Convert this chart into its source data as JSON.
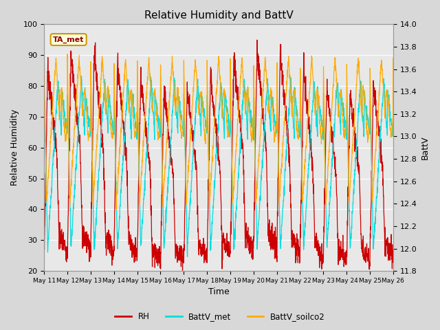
{
  "title": "Relative Humidity and BattV",
  "xlabel": "Time",
  "ylabel_left": "Relative Humidity",
  "ylabel_right": "BattV",
  "ylim_left": [
    20,
    100
  ],
  "ylim_right": [
    11.8,
    14.0
  ],
  "annotation_text": "TA_met",
  "x_tick_labels": [
    "May 11",
    "May 12",
    "May 13",
    "May 14",
    "May 15",
    "May 16",
    "May 17",
    "May 18",
    "May 19",
    "May 20",
    "May 21",
    "May 22",
    "May 23",
    "May 24",
    "May 25",
    "May 26"
  ],
  "rh_color": "#cc0000",
  "battv_met_color": "#00dddd",
  "battv_soilco2_color": "#ffaa00",
  "bg_color": "#d8d8d8",
  "plot_bg_color": "#e8e8e8",
  "grid_color": "#ffffff",
  "figsize": [
    6.4,
    4.8
  ],
  "dpi": 100
}
